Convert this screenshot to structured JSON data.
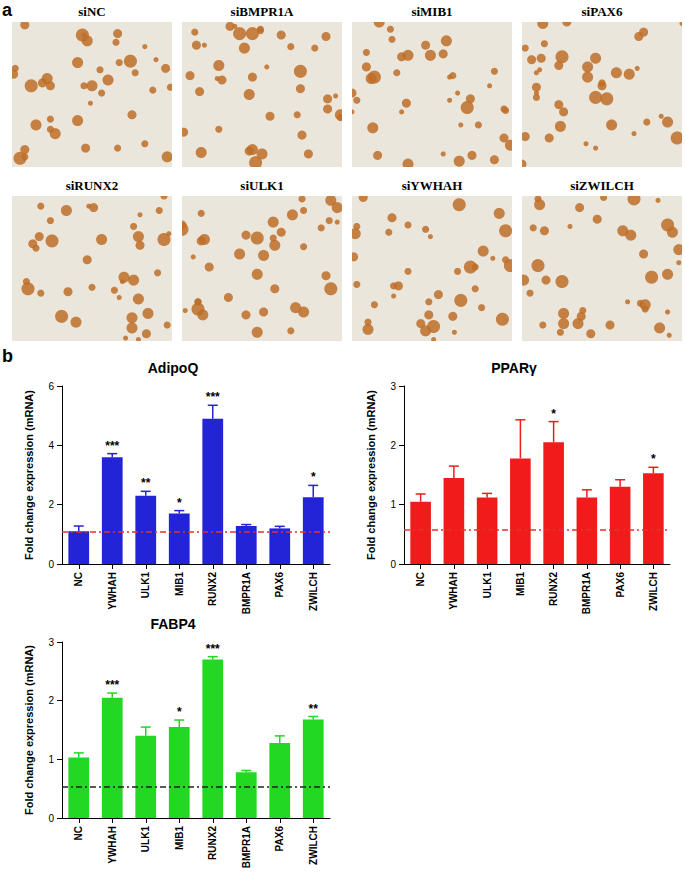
{
  "figure": {
    "panel_a": {
      "label": "a",
      "images": [
        "siNC",
        "siBMPR1A",
        "siMIB1",
        "siPAX6",
        "siRUNX2",
        "siULK1",
        "siYWHAH",
        "siZWILCH"
      ]
    },
    "panel_b": {
      "label": "b"
    }
  },
  "chart_data": [
    {
      "type": "bar",
      "title": "AdipoQ",
      "y_label": "Fold change expression (mRNA)",
      "categories": [
        "NC",
        "YWHAH",
        "ULK1",
        "MIB1",
        "RUNX2",
        "BMPR1A",
        "PAX6",
        "ZWILCH"
      ],
      "values": [
        1.1,
        3.6,
        2.3,
        1.7,
        4.9,
        1.28,
        1.2,
        2.25
      ],
      "errors": [
        0.18,
        0.12,
        0.15,
        0.1,
        0.45,
        0.05,
        0.07,
        0.4
      ],
      "significance": [
        null,
        "***",
        "**",
        "*",
        "***",
        null,
        null,
        "*"
      ],
      "reference_line": 1.1,
      "color": "#2323d8",
      "ylim": [
        0,
        6
      ],
      "yticks": [
        0,
        2,
        4,
        6
      ]
    },
    {
      "type": "bar",
      "title": "PPARγ",
      "y_label": "Fold change expression (mRNA)",
      "categories": [
        "NC",
        "YWHAH",
        "ULK1",
        "MIB1",
        "RUNX2",
        "BMPR1A",
        "PAX6",
        "ZWILCH"
      ],
      "values": [
        1.05,
        1.45,
        1.12,
        1.78,
        2.05,
        1.12,
        1.3,
        1.53
      ],
      "errors": [
        0.13,
        0.2,
        0.07,
        0.65,
        0.35,
        0.13,
        0.12,
        0.1
      ],
      "significance": [
        null,
        null,
        null,
        null,
        "*",
        null,
        null,
        "*"
      ],
      "reference_line": 0.58,
      "color": "#f21b1b",
      "ylim": [
        0,
        3
      ],
      "yticks": [
        0,
        1,
        2,
        3
      ]
    },
    {
      "type": "bar",
      "title": "FABP4",
      "y_label": "Fold change expression (mRNA)",
      "categories": [
        "NC",
        "YWHAH",
        "ULK1",
        "MIB1",
        "RUNX2",
        "BMPR1A",
        "PAX6",
        "ZWILCH"
      ],
      "values": [
        1.03,
        2.05,
        1.4,
        1.55,
        2.7,
        0.78,
        1.28,
        1.68
      ],
      "errors": [
        0.08,
        0.08,
        0.15,
        0.12,
        0.05,
        0.03,
        0.12,
        0.05
      ],
      "significance": [
        null,
        "***",
        null,
        "*",
        "***",
        null,
        null,
        "**"
      ],
      "reference_line": 0.53,
      "color": "#22d822",
      "ylim": [
        0,
        3
      ],
      "yticks": [
        0,
        1,
        2,
        3
      ]
    }
  ]
}
